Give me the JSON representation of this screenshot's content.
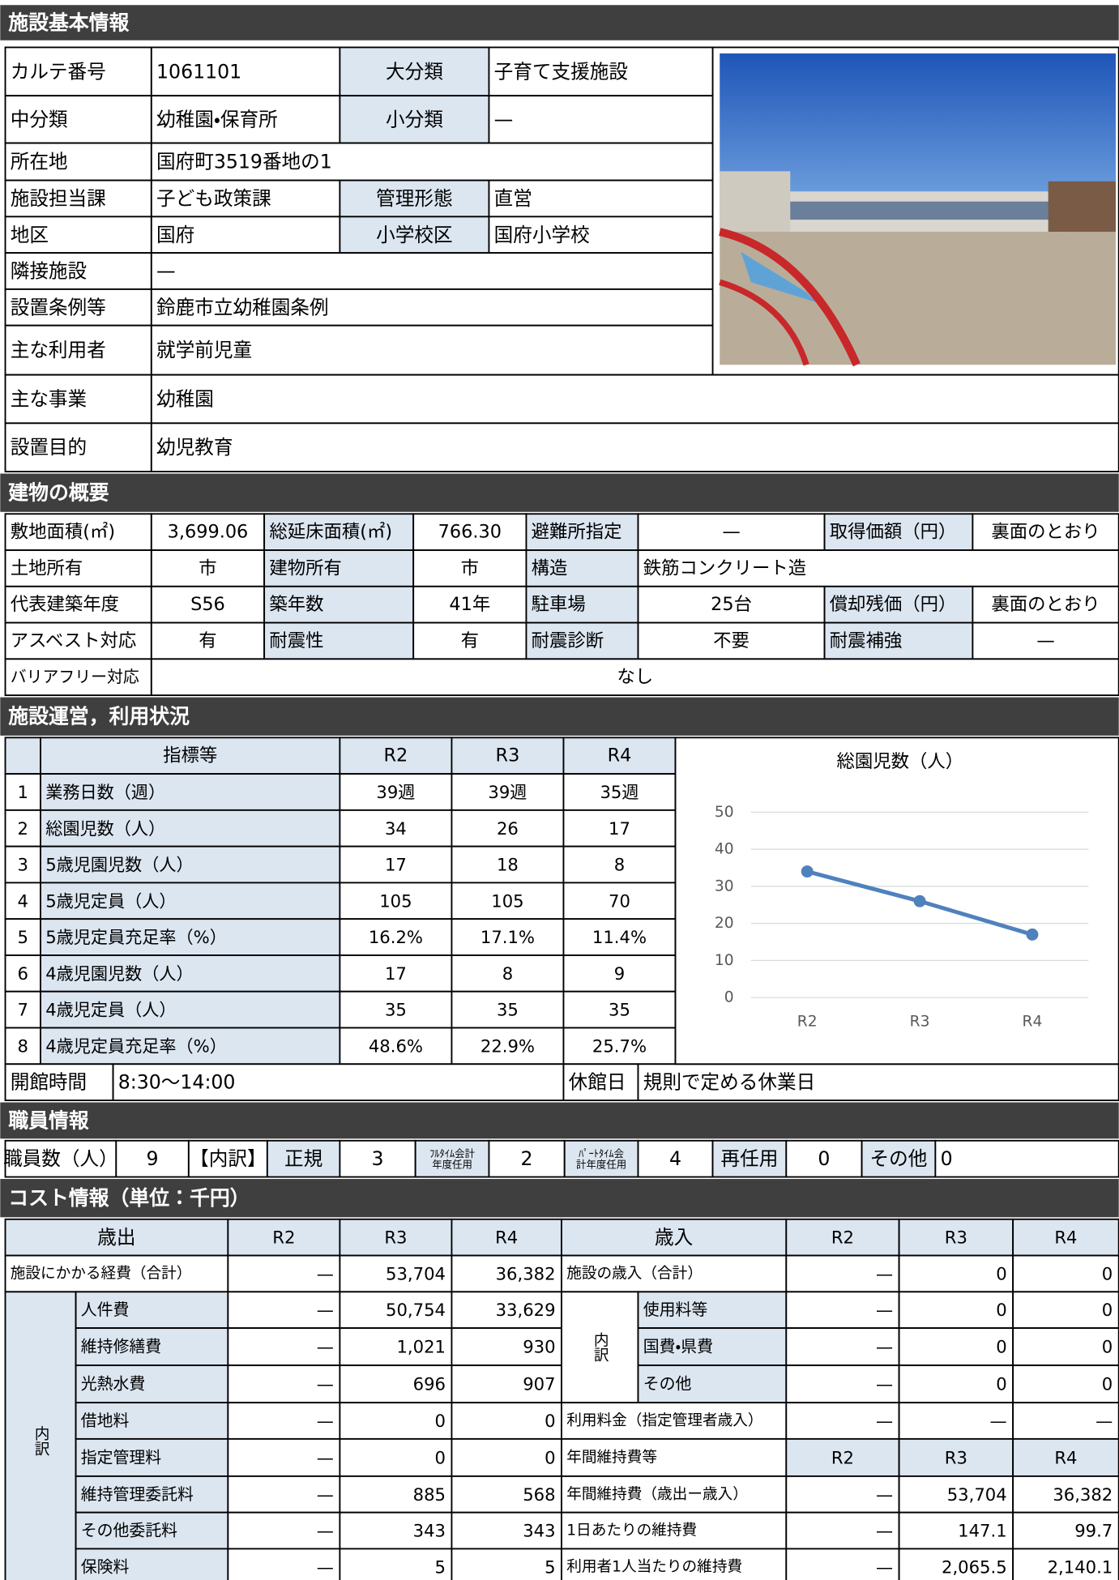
{
  "sections": [
    "施設基本情報",
    "建物の概要",
    "施設運営，利用状況",
    "職員情報",
    "コスト情報（単位：千円）"
  ],
  "basic": [
    [
      "カルテ番号",
      "1061101",
      "大分類",
      "子育て支援施設"
    ],
    [
      "中分類",
      "幼稚園・保育所",
      "小分類",
      "—"
    ],
    [
      "所在地",
      "国府町3519番地の1"
    ],
    [
      "施設担当課",
      "子ども政策課",
      "管理形態",
      "直営"
    ],
    [
      "地区",
      "国府",
      "小学校区",
      "国府小学校"
    ],
    [
      "隣接施設",
      "—"
    ],
    [
      "設置条例等",
      "鈴鹿市立幼稚園条例"
    ],
    [
      "主な利用者",
      "就学前児童"
    ],
    [
      "主な事業",
      "幼稚園"
    ],
    [
      "設置目的",
      "幼児教育"
    ]
  ],
  "building": [
    [
      "敷地面積(㎡)",
      "3,699.06",
      "総延床面積(㎡)",
      "766.30",
      "避難所指定",
      "—",
      "取得価額（円）",
      "裏面のとおり"
    ],
    [
      "土地所有",
      "市",
      "建物所有",
      "市",
      "構造",
      "鉄筋コンクリート造"
    ],
    [
      "代表建築年度",
      "S56",
      "築年数",
      "41年",
      "駐車場",
      "25台",
      "償却残価（円）",
      "裏面のとおり"
    ],
    [
      "アスベスト対応",
      "有",
      "耐震性",
      "有",
      "耐震診断",
      "不要",
      "耐震補強",
      "—"
    ],
    [
      "バリアフリー対応",
      "なし"
    ]
  ],
  "operation": {
    "header": [
      "指標等",
      "R2",
      "R3",
      "R4"
    ],
    "rows": [
      [
        "1",
        "業務日数（週）",
        "39週",
        "39週",
        "35週"
      ],
      [
        "2",
        "総園児数（人）",
        "34",
        "26",
        "17"
      ],
      [
        "3",
        "5歳児園児数（人）",
        "17",
        "18",
        "8"
      ],
      [
        "4",
        "5歳児定員（人）",
        "105",
        "105",
        "70"
      ],
      [
        "5",
        "5歳児定員充足率（%）",
        "16.2%",
        "17.1%",
        "11.4%"
      ],
      [
        "6",
        "4歳児園児数（人）",
        "17",
        "8",
        "9"
      ],
      [
        "7",
        "4歳児定員（人）",
        "35",
        "35",
        "35"
      ],
      [
        "8",
        "4歳児定員充足率（%）",
        "48.6%",
        "22.9%",
        "25.7%"
      ]
    ],
    "open": [
      "開館時間",
      "8:30〜14:00",
      "休館日",
      "規則で定める休業日"
    ]
  },
  "chart_data": {
    "type": "line",
    "title": "総園児数（人）",
    "categories": [
      "R2",
      "R3",
      "R4"
    ],
    "values": [
      34,
      26,
      17
    ],
    "color": "#4f81bd",
    "ylim": [
      0,
      50
    ],
    "yticks": [
      0,
      10,
      20,
      30,
      40,
      50
    ],
    "grid": true
  },
  "staff": [
    "職員数（人）",
    "9",
    "【内訳】",
    "正規",
    "3",
    [
      "ﾌﾙﾀｲﾑ会計",
      "年度任用"
    ],
    "2",
    [
      "ﾊﾟｰﾄﾀｲﾑ会",
      "計年度任用"
    ],
    "4",
    "再任用",
    "0",
    "その他",
    "0"
  ],
  "cost": {
    "expense_header": [
      "歳出",
      "R2",
      "R3",
      "R4"
    ],
    "expense_total": [
      "施設にかかる経費（合計）",
      "—",
      "53,704",
      "36,382"
    ],
    "expense_breakdown": "内訳",
    "expense_items": [
      [
        "人件費",
        "—",
        "50,754",
        "33,629"
      ],
      [
        "維持修繕費",
        "—",
        "1,021",
        "930"
      ],
      [
        "光熱水費",
        "—",
        "696",
        "907"
      ],
      [
        "借地料",
        "—",
        "0",
        "0"
      ],
      [
        "指定管理料",
        "—",
        "0",
        "0"
      ],
      [
        "維持管理委託料",
        "—",
        "885",
        "568"
      ],
      [
        "その他委託料",
        "—",
        "343",
        "343"
      ],
      [
        "保険料",
        "—",
        "5",
        "5"
      ]
    ],
    "revenue_header": [
      "歳入",
      "R2",
      "R3",
      "R4"
    ],
    "revenue_total": [
      "施設の歳入（合計）",
      "—",
      "0",
      "0"
    ],
    "revenue_breakdown": "内訳",
    "revenue_items": [
      [
        "使用料等",
        "—",
        "0",
        "0"
      ],
      [
        "国費・県費",
        "—",
        "0",
        "0"
      ],
      [
        "その他",
        "—",
        "0",
        "0"
      ]
    ],
    "fee": [
      "利用料金（指定管理者歳入）",
      "—",
      "—",
      "—"
    ],
    "maint_header": [
      "年間維持費等",
      "R2",
      "R3",
      "R4"
    ],
    "maint": [
      [
        "年間維持費（歳出ー歳入）",
        "—",
        "53,704",
        "36,382"
      ],
      [
        "1日あたりの維持費",
        "—",
        "147.1",
        "99.7"
      ],
      [
        "利用者1人当たりの維持費",
        "—",
        "2,065.5",
        "2,140.1"
      ]
    ]
  }
}
